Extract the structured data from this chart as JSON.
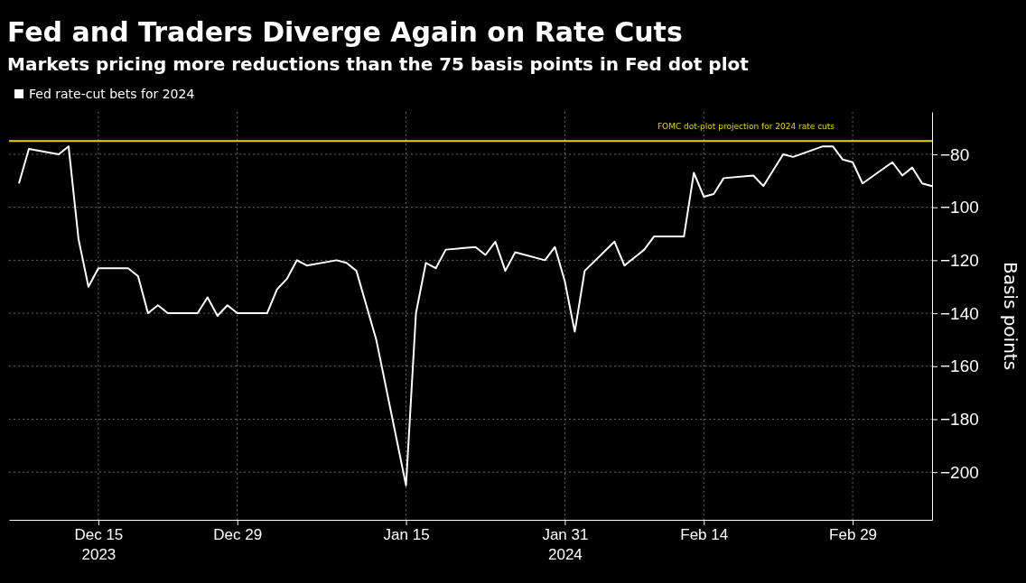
{
  "chart_data": {
    "type": "line",
    "title": "Fed and Traders Diverge Again on Rate Cuts",
    "subtitle": "Markets pricing more reductions than the 75 basis points in Fed dot plot",
    "ylabel": "Basis points",
    "x": [
      "2023-12-07",
      "2023-12-08",
      "2023-12-11",
      "2023-12-12",
      "2023-12-13",
      "2023-12-14",
      "2023-12-15",
      "2023-12-18",
      "2023-12-19",
      "2023-12-20",
      "2023-12-21",
      "2023-12-22",
      "2023-12-25",
      "2023-12-26",
      "2023-12-27",
      "2023-12-28",
      "2023-12-29",
      "2024-01-01",
      "2024-01-02",
      "2024-01-03",
      "2024-01-04",
      "2024-01-05",
      "2024-01-08",
      "2024-01-09",
      "2024-01-10",
      "2024-01-12",
      "2024-01-15",
      "2024-01-16",
      "2024-01-17",
      "2024-01-18",
      "2024-01-19",
      "2024-01-22",
      "2024-01-23",
      "2024-01-24",
      "2024-01-25",
      "2024-01-26",
      "2024-01-29",
      "2024-01-30",
      "2024-01-31",
      "2024-02-01",
      "2024-02-02",
      "2024-02-05",
      "2024-02-06",
      "2024-02-07",
      "2024-02-08",
      "2024-02-09",
      "2024-02-12",
      "2024-02-13",
      "2024-02-14",
      "2024-02-15",
      "2024-02-16",
      "2024-02-19",
      "2024-02-20",
      "2024-02-21",
      "2024-02-22",
      "2024-02-23",
      "2024-02-26",
      "2024-02-27",
      "2024-02-28",
      "2024-02-29",
      "2024-03-01",
      "2024-03-04",
      "2024-03-05",
      "2024-03-06",
      "2024-03-07",
      "2024-03-08"
    ],
    "series": [
      {
        "name": "Fed rate-cut bets for 2024",
        "color": "#ffffff",
        "values": [
          -91,
          -78,
          -80,
          -77,
          -112,
          -130,
          -123,
          -123,
          -126,
          -140,
          -137,
          -140,
          -140,
          -134,
          -141,
          -137,
          -140,
          -140,
          -131,
          -127,
          -120,
          -122,
          -120,
          -121,
          -124,
          -150,
          -205,
          -140,
          -121,
          -123,
          -116,
          -115,
          -118,
          -113,
          -124,
          -117,
          -120,
          -115,
          -128,
          -147,
          -124,
          -113,
          -122,
          -119,
          -116,
          -111,
          -111,
          -87,
          -96,
          -95,
          -89,
          -88,
          -92,
          -86,
          -80,
          -81,
          -77,
          -77,
          -82,
          -83,
          -91,
          -83,
          -88,
          -85,
          -91,
          -92
        ]
      }
    ],
    "xlim": [
      "2023-12-06",
      "2024-03-08"
    ],
    "xticks": [
      {
        "value": "2023-12-15",
        "label": "Dec 15\n2023"
      },
      {
        "value": "2023-12-29",
        "label": "Dec 29"
      },
      {
        "value": "2024-01-15",
        "label": "Jan 15"
      },
      {
        "value": "2024-01-31",
        "label": "Jan 31\n2024"
      },
      {
        "value": "2024-02-14",
        "label": "Feb 14"
      },
      {
        "value": "2024-02-29",
        "label": "Feb 29"
      }
    ],
    "ylim": [
      -218,
      -64
    ],
    "yticks": [
      -80,
      -100,
      -120,
      -140,
      -160,
      -180,
      -200
    ],
    "ref_lines": [
      {
        "axis": "y",
        "value": -75,
        "label": "FOMC dot-plot projection for 2024 rate cuts",
        "color": "#e6d200"
      }
    ],
    "grid": true,
    "legend": "top left"
  }
}
